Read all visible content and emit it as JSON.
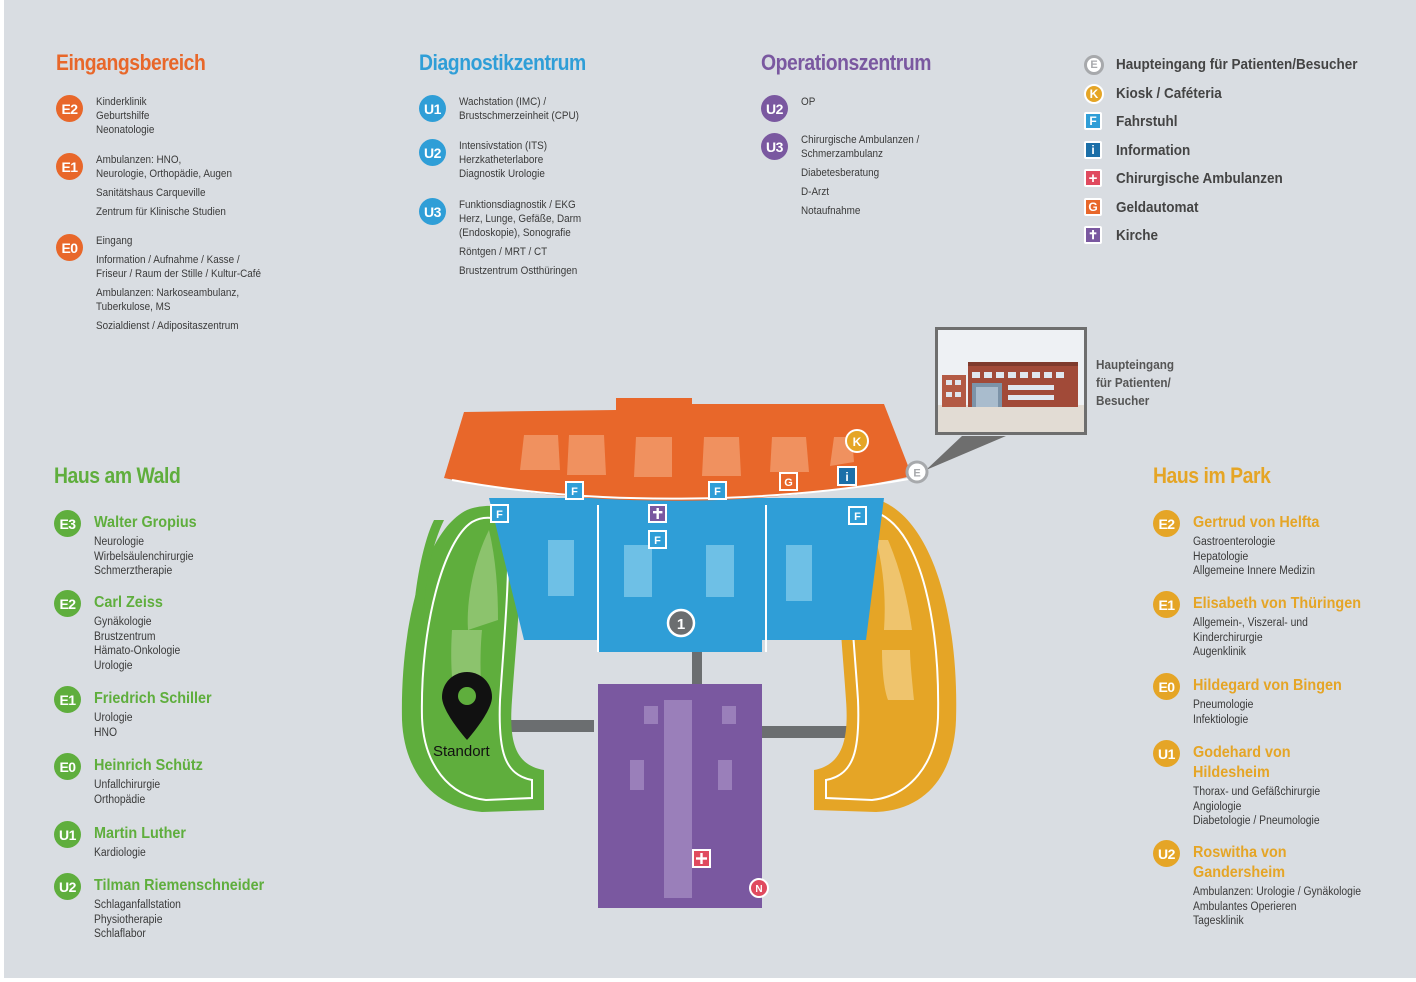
{
  "sections": {
    "eingangsbereich": {
      "title": "Eingangsbereich",
      "floors": [
        {
          "badge": "E2",
          "lines": [
            "Kinderklinik\nGeburtshilfe\nNeonatologie"
          ]
        },
        {
          "badge": "E1",
          "lines": [
            "Ambulanzen: HNO,\nNeurologie, Orthopädie, Augen",
            "Sanitätshaus Carqueville",
            "Zentrum für Klinische Studien"
          ]
        },
        {
          "badge": "E0",
          "lines": [
            "Eingang",
            "Information / Aufnahme / Kasse /\nFriseur / Raum der Stille / Kultur-Café",
            "Ambulanzen: Narkoseambulanz,\nTuberkulose, MS",
            "Sozialdienst / Adipositaszentrum"
          ]
        }
      ]
    },
    "diagnostikzentrum": {
      "title": "Diagnostikzentrum",
      "floors": [
        {
          "badge": "U1",
          "lines": [
            "Wachstation (IMC) /\nBrustschmerzeinheit (CPU)"
          ]
        },
        {
          "badge": "U2",
          "lines": [
            "Intensivstation (ITS)\nHerzkatheterlabore\nDiagnostik Urologie"
          ]
        },
        {
          "badge": "U3",
          "lines": [
            "Funktionsdiagnostik / EKG\nHerz, Lunge, Gefäße, Darm\n(Endoskopie), Sonografie",
            "Röntgen / MRT / CT",
            "Brustzentrum Ostthüringen"
          ]
        }
      ]
    },
    "operationszentrum": {
      "title": "Operationszentrum",
      "floors": [
        {
          "badge": "U2",
          "lines": [
            "OP"
          ]
        },
        {
          "badge": "U3",
          "lines": [
            "Chirurgische Ambulanzen /\nSchmerzambulanz",
            "Diabetesberatung",
            "D-Arzt",
            "Notaufnahme"
          ]
        }
      ]
    },
    "haus_am_wald": {
      "title": "Haus am Wald",
      "floors": [
        {
          "badge": "E3",
          "name": "Walter Gropius",
          "lines": "Neurologie\nWirbelsäulenchirurgie\nSchmerztherapie"
        },
        {
          "badge": "E2",
          "name": "Carl Zeiss",
          "lines": "Gynäkologie\nBrustzentrum\nHämato-Onkologie\nUrologie"
        },
        {
          "badge": "E1",
          "name": "Friedrich Schiller",
          "lines": "Urologie\nHNO"
        },
        {
          "badge": "E0",
          "name": "Heinrich Schütz",
          "lines": "Unfallchirurgie\nOrthopädie"
        },
        {
          "badge": "U1",
          "name": "Martin Luther",
          "lines": "Kardiologie"
        },
        {
          "badge": "U2",
          "name": "Tilman Riemenschneider",
          "lines": "Schlaganfallstation\nPhysiotherapie\nSchlaflabor"
        }
      ]
    },
    "haus_im_park": {
      "title": "Haus im Park",
      "floors": [
        {
          "badge": "E2",
          "name": "Gertrud von Helfta",
          "lines": "Gastroenterologie\nHepatologie\nAllgemeine Innere Medizin"
        },
        {
          "badge": "E1",
          "name": "Elisabeth von Thüringen",
          "lines": "Allgemein-, Viszeral- und\nKinderchirurgie\nAugenklinik"
        },
        {
          "badge": "E0",
          "name": "Hildegard von Bingen",
          "lines": "Pneumologie\nInfektiologie"
        },
        {
          "badge": "U1",
          "name": "Godehard von\nHildesheim",
          "lines": "Thorax- und Gefäßchirurgie\nAngiologie\nDiabetologie / Pneumologie"
        },
        {
          "badge": "U2",
          "name": "Roswitha von\nGandersheim",
          "lines": "Ambulanzen: Urologie / Gynäkologie\nAmbulantes Operieren\nTagesklinik"
        }
      ]
    }
  },
  "legend": [
    {
      "glyph": "E",
      "label": "Haupteingang für Patienten/Besucher",
      "shape": "circle",
      "color": "#a7a9ac",
      "icon": "main-entrance-icon"
    },
    {
      "glyph": "K",
      "label": "Kiosk / Caféteria",
      "shape": "circle",
      "color": "#e5a526",
      "icon": "kiosk-icon"
    },
    {
      "glyph": "F",
      "label": "Fahrstuhl",
      "shape": "square",
      "color": "#2f9ed7",
      "icon": "elevator-icon"
    },
    {
      "glyph": "i",
      "label": "Information",
      "shape": "square",
      "color": "#1c6fa8",
      "icon": "information-icon"
    },
    {
      "glyph": "+",
      "label": "Chirurgische Ambulanzen",
      "shape": "square",
      "color": "#e04a5f",
      "icon": "surgical-ambulance-icon"
    },
    {
      "glyph": "G",
      "label": "Geldautomat",
      "shape": "square",
      "color": "#e8672a",
      "icon": "atm-icon"
    },
    {
      "glyph": "✝",
      "label": "Kirche",
      "shape": "square",
      "color": "#7a58a0",
      "icon": "church-icon"
    }
  ],
  "map": {
    "building_number": "1",
    "standort": "Standort",
    "entrance_caption": "Haupteingang\nfür Patienten/\nBesucher",
    "markers": {
      "kiosk": "K",
      "info": "i",
      "atm": "G",
      "elevator": "F",
      "entrance": "E",
      "emergency": "N"
    }
  },
  "colors": {
    "orange": "#e8672a",
    "blue": "#2f9ed7",
    "purple": "#7a58a0",
    "green": "#5fae3d",
    "amber": "#e5a526",
    "background": "#d9dde2"
  }
}
